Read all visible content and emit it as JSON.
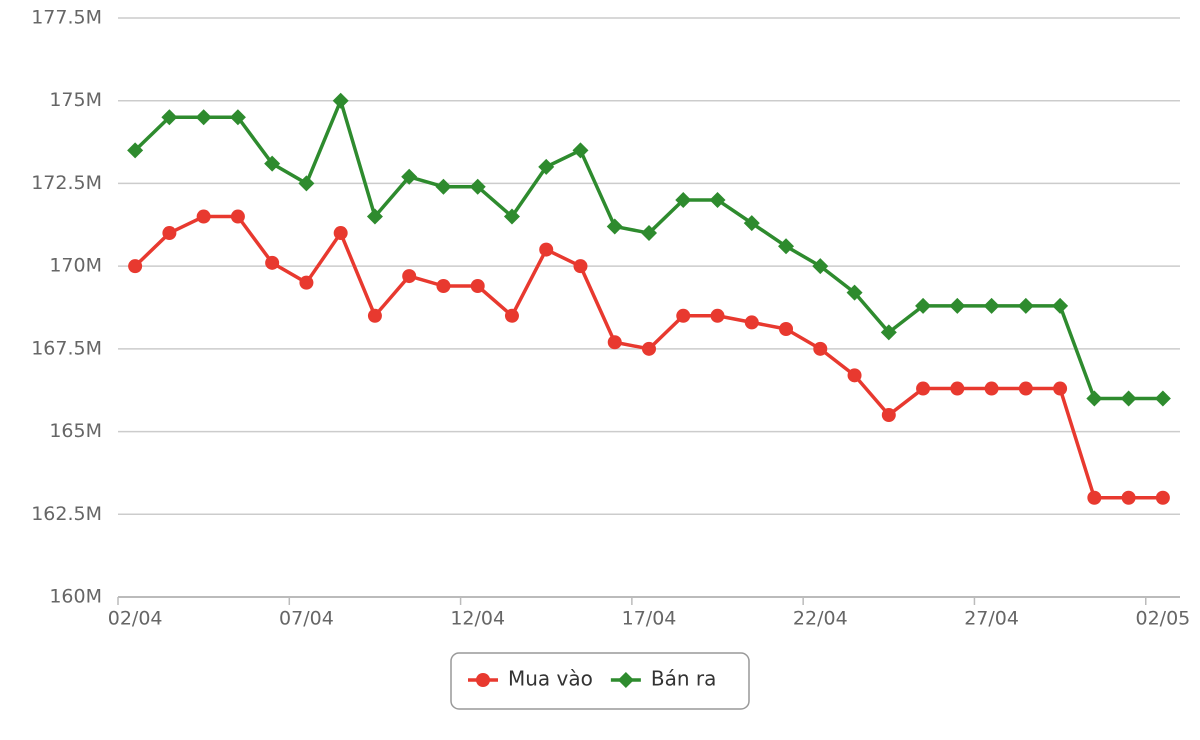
{
  "chart_data": {
    "type": "line",
    "categories": [
      "02/04",
      null,
      null,
      null,
      null,
      "07/04",
      null,
      null,
      null,
      null,
      "12/04",
      null,
      null,
      null,
      null,
      "17/04",
      null,
      null,
      null,
      null,
      "22/04",
      null,
      null,
      null,
      null,
      "27/04",
      null,
      null,
      null,
      null,
      "02/05"
    ],
    "series": [
      {
        "name": "Mua vào",
        "color": "#e8392f",
        "marker": "circle",
        "values": [
          170,
          171,
          171.5,
          171.5,
          170.1,
          169.5,
          171,
          168.5,
          169.7,
          169.4,
          169.4,
          168.5,
          170.5,
          170,
          167.7,
          167.5,
          168.5,
          168.5,
          168.3,
          168.1,
          167.5,
          166.7,
          165.5,
          166.3,
          166.3,
          166.3,
          166.3,
          166.3,
          163,
          163,
          163
        ]
      },
      {
        "name": "Bán ra",
        "color": "#2e8b2e",
        "marker": "diamond",
        "values": [
          173.5,
          174.5,
          174.5,
          174.5,
          173.1,
          172.5,
          175,
          171.5,
          172.7,
          172.4,
          172.4,
          171.5,
          173,
          173.5,
          171.2,
          171,
          172,
          172,
          171.3,
          170.6,
          170,
          169.2,
          168,
          168.8,
          168.8,
          168.8,
          168.8,
          168.8,
          166,
          166,
          166
        ]
      }
    ],
    "ylim": [
      160,
      177.5
    ],
    "yticks": [
      {
        "value": 160,
        "label": "160M"
      },
      {
        "value": 162.5,
        "label": "162.5M"
      },
      {
        "value": 165,
        "label": "165M"
      },
      {
        "value": 167.5,
        "label": "167.5M"
      },
      {
        "value": 170,
        "label": "170M"
      },
      {
        "value": 172.5,
        "label": "172.5M"
      },
      {
        "value": 175,
        "label": "175M"
      },
      {
        "value": 177.5,
        "label": "177.5M"
      }
    ],
    "grid": true,
    "legend": "bottom"
  }
}
